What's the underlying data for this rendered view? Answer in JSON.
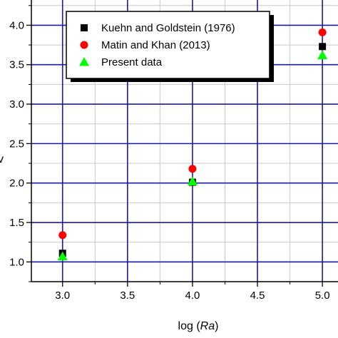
{
  "chart_data": {
    "type": "scatter",
    "xlabel_prefix": "log (",
    "xlabel_var": "Ra",
    "xlabel_suffix": ")",
    "ylabel_visible_char": "v",
    "xlim": [
      2.76,
      5.12
    ],
    "ylim": [
      0.75,
      4.32
    ],
    "x_ticks": [
      3.0,
      3.5,
      4.0,
      4.5,
      5.0
    ],
    "x_tick_labels": [
      "3.0",
      "3.5",
      "4.0",
      "4.5",
      "5.0"
    ],
    "y_ticks": [
      1.0,
      1.5,
      2.0,
      2.5,
      3.0,
      3.5,
      4.0
    ],
    "y_tick_labels": [
      "1.0",
      "1.5",
      "2.0",
      "2.5",
      "3.0",
      "3.5",
      "4.0"
    ],
    "grid": true,
    "legend_position": "top-center",
    "series": [
      {
        "name": "Kuehn and Goldstein (1976)",
        "marker": "square",
        "color": "#000000",
        "points": [
          [
            3.0,
            1.11
          ],
          [
            4.0,
            2.01
          ],
          [
            5.0,
            3.73
          ]
        ]
      },
      {
        "name": "Matin and Khan (2013)",
        "marker": "circle",
        "color": "#ff0000",
        "points": [
          [
            3.0,
            1.34
          ],
          [
            4.0,
            2.18
          ],
          [
            5.0,
            3.91
          ]
        ]
      },
      {
        "name": "Present data",
        "marker": "triangle",
        "color": "#00ff00",
        "points": [
          [
            3.0,
            1.07
          ],
          [
            4.0,
            2.02
          ],
          [
            5.0,
            3.62
          ]
        ]
      }
    ]
  },
  "colors": {
    "grid_major": "#1a1aa6",
    "grid_minor": "#c8c8c8",
    "axis": "#000000"
  }
}
